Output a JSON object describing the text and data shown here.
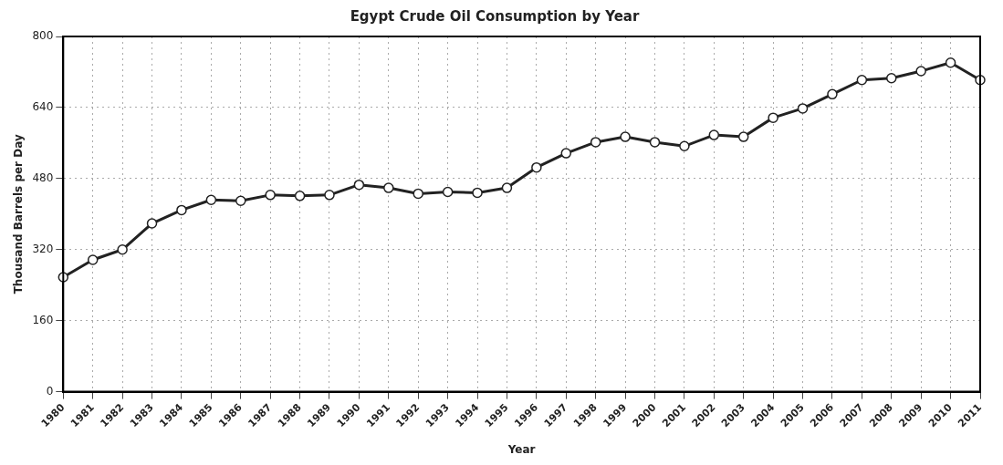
{
  "chart_data": {
    "type": "line",
    "title": "Egypt Crude Oil Consumption by Year",
    "xlabel": "Year",
    "ylabel": "Thousand Barrels per Day",
    "categories": [
      "1980",
      "1981",
      "1982",
      "1983",
      "1984",
      "1985",
      "1986",
      "1987",
      "1988",
      "1989",
      "1990",
      "1991",
      "1992",
      "1993",
      "1994",
      "1995",
      "1996",
      "1997",
      "1998",
      "1999",
      "2000",
      "2001",
      "2002",
      "2003",
      "2004",
      "2005",
      "2006",
      "2007",
      "2008",
      "2009",
      "2010",
      "2011"
    ],
    "series": [
      {
        "color": "#222222",
        "values": [
          258,
          297,
          320,
          379,
          409,
          432,
          430,
          443,
          441,
          443,
          466,
          459,
          446,
          450,
          448,
          459,
          505,
          537,
          562,
          574,
          562,
          553,
          578,
          574,
          617,
          638,
          670,
          702,
          706,
          722,
          741,
          702
        ]
      }
    ],
    "ylim": [
      0,
      800
    ],
    "yticks": [
      0,
      160,
      320,
      480,
      640,
      800
    ],
    "grid": true,
    "marker": "circle",
    "line_style": "solid"
  }
}
